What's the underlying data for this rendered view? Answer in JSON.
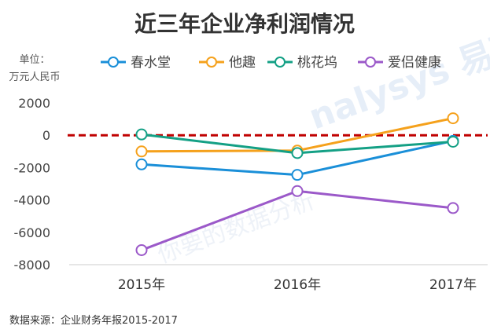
{
  "chart_data": {
    "type": "line",
    "title": "近三年企业净利润情况",
    "ylabel": [
      "单位：",
      "万元人民币"
    ],
    "categories": [
      "2015年",
      "2016年",
      "2017年"
    ],
    "ylim": [
      -8000,
      2000
    ],
    "yticks": [
      2000,
      0,
      -2000,
      -4000,
      -6000,
      -8000
    ],
    "legend_position": "top",
    "reference_line": {
      "y": 0,
      "color": "#c00000",
      "style": "dashed"
    },
    "series": [
      {
        "name": "春水堂",
        "color": "#1a8fd8",
        "values": [
          -1800,
          -2450,
          -350
        ]
      },
      {
        "name": "他趣",
        "color": "#f5a11c",
        "values": [
          -1000,
          -950,
          1050
        ]
      },
      {
        "name": "桃花坞",
        "color": "#14a085",
        "values": [
          50,
          -1100,
          -400
        ]
      },
      {
        "name": "爱侣健康",
        "color": "#9b59c9",
        "values": [
          -7100,
          -3450,
          -4500
        ]
      }
    ]
  },
  "source": "数据来源：企业财务年报2015-2017"
}
